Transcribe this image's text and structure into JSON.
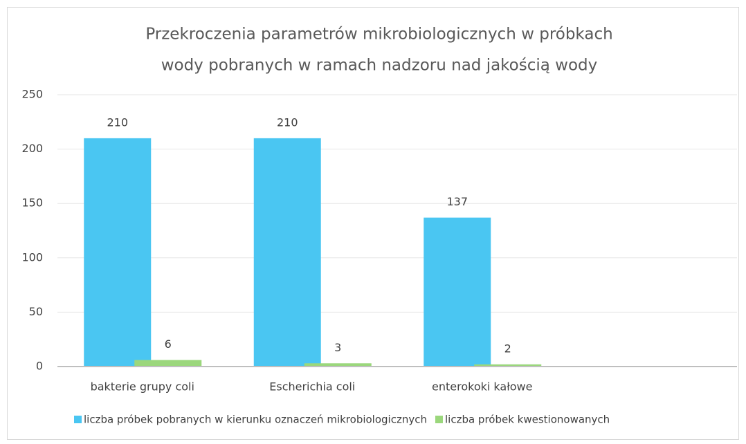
{
  "chart_data": {
    "type": "bar",
    "title": [
      "Przekroczenia parametrów mikrobiologicznych w próbkach",
      "wody pobranych w ramach nadzoru nad jakością wody"
    ],
    "categories": [
      "bakterie grupy coli",
      "Escherichia coli",
      "enterokoki kałowe",
      null
    ],
    "series": [
      {
        "name": "liczba próbek pobranych w kierunku oznaczeń mikrobiologicznych",
        "color": "#4ac6f2",
        "values": [
          210,
          210,
          137,
          null
        ]
      },
      {
        "name": "liczba próbek kwestionowanych",
        "color": "#9bd77c",
        "values": [
          6,
          3,
          2,
          null
        ]
      }
    ],
    "ylim": [
      0,
      250
    ],
    "yticks": [
      0,
      50,
      100,
      150,
      200,
      250
    ],
    "grid": true,
    "legend": "bottom"
  }
}
